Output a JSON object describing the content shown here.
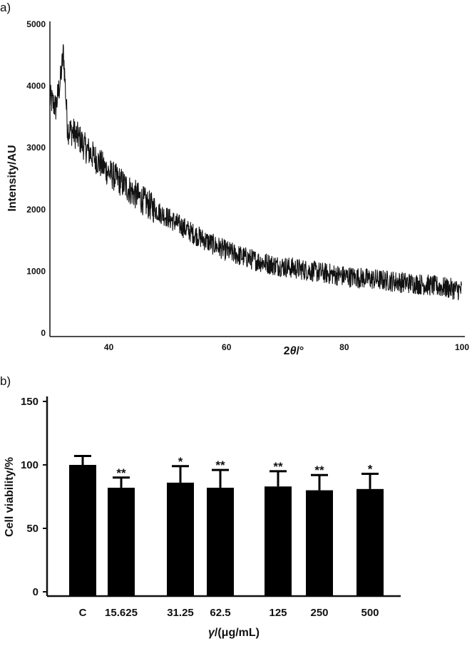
{
  "panels": {
    "a": "a)",
    "b": "b)"
  },
  "chart_data": [
    {
      "type": "line",
      "panel": "a)",
      "title": "",
      "xlabel_prefix": "2",
      "xlabel_symbol": "θ",
      "xlabel_unit": "/°",
      "ylabel": "Intensity/AU",
      "xlim": [
        30,
        100
      ],
      "ylim": [
        0,
        5000
      ],
      "xticks": [
        40,
        60,
        80,
        100
      ],
      "yticks": [
        0,
        1000,
        2000,
        3000,
        4000,
        5000
      ],
      "grid": false,
      "color": "#111111",
      "noise": "high-frequency noise, amplitude ≈ ±200 AU, on the smooth trend below",
      "series": [
        {
          "x": [
            30,
            31,
            31.8,
            32.3,
            33,
            34,
            35,
            36,
            38,
            40,
            42,
            44,
            46,
            48,
            50,
            52,
            54,
            56,
            58,
            60,
            62,
            64,
            66,
            68,
            70,
            72,
            74,
            76,
            78,
            80,
            82,
            84,
            86,
            88,
            90,
            92,
            94,
            96,
            98,
            100
          ],
          "y": [
            3800,
            3650,
            4100,
            4550,
            3300,
            3250,
            3150,
            3000,
            2800,
            2600,
            2450,
            2280,
            2130,
            1990,
            1870,
            1750,
            1630,
            1520,
            1420,
            1330,
            1260,
            1200,
            1150,
            1100,
            1070,
            1040,
            1010,
            980,
            950,
            920,
            900,
            880,
            860,
            840,
            820,
            800,
            780,
            750,
            720,
            690
          ]
        }
      ]
    },
    {
      "type": "bar",
      "panel": "b)",
      "title": "",
      "xlabel_symbol": "γ",
      "xlabel_unit": "/(μg/mL)",
      "ylabel": "Cell viability/%",
      "categories": [
        "C",
        "15.625",
        "31.25",
        "62.5",
        "125",
        "250",
        "500"
      ],
      "values": [
        100,
        82,
        86,
        82,
        83,
        80,
        81
      ],
      "error": [
        7,
        8,
        13,
        14,
        12,
        12,
        12
      ],
      "significance": [
        "",
        "**",
        "*",
        "**",
        "**",
        "**",
        "*"
      ],
      "ylim": [
        0,
        150
      ],
      "yticks": [
        0,
        50,
        100,
        150
      ],
      "grid": false,
      "color": "#000000"
    }
  ]
}
